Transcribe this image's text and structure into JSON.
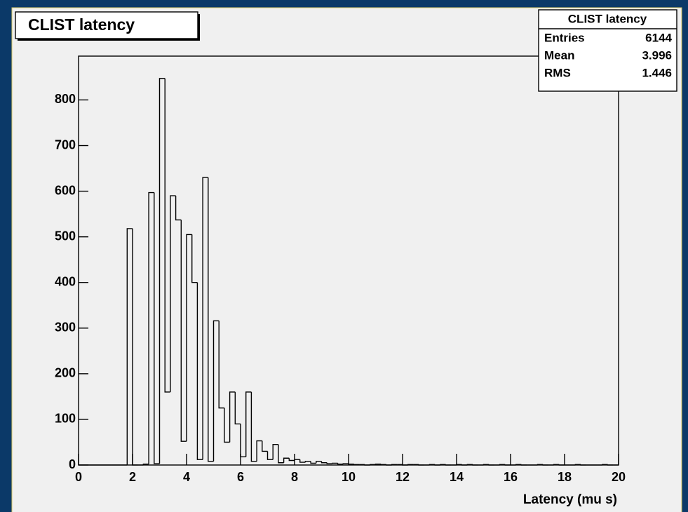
{
  "chart_data": {
    "type": "histogram",
    "title": "CLIST latency",
    "xlabel": "Latency (mu s)",
    "bins": [
      0,
      0.2,
      0.4,
      0.6,
      0.8,
      1,
      1.2,
      1.4,
      1.6,
      1.8,
      2,
      2.2,
      2.4,
      2.6,
      2.8,
      3,
      3.2,
      3.4,
      3.6,
      3.8,
      4,
      4.2,
      4.4,
      4.6,
      4.8,
      5,
      5.2,
      5.4,
      5.6,
      5.8,
      6,
      6.2,
      6.4,
      6.6,
      6.8,
      7,
      7.2,
      7.4,
      7.6,
      7.8,
      8,
      8.2,
      8.4,
      8.6,
      8.8,
      9,
      9.2,
      9.4,
      9.6,
      9.8,
      10,
      10.2,
      10.4,
      10.6,
      10.8,
      11,
      11.2,
      11.4,
      11.6,
      11.8,
      12,
      12.2,
      12.4,
      12.6,
      12.8,
      13,
      13.2,
      13.4,
      13.6,
      13.8,
      14,
      14.2,
      14.4,
      14.6,
      14.8,
      15,
      15.2,
      15.4,
      15.6,
      15.8,
      16,
      16.2,
      16.4,
      16.6,
      16.8,
      17,
      17.2,
      17.4,
      17.6,
      17.8,
      18,
      18.2,
      18.4,
      18.6,
      18.8,
      19,
      19.2,
      19.4,
      19.6,
      19.8,
      20
    ],
    "values": [
      0,
      0,
      0,
      0,
      0,
      0,
      0,
      0,
      0,
      518,
      0,
      0,
      2,
      597,
      3,
      847,
      160,
      590,
      537,
      52,
      505,
      400,
      12,
      630,
      8,
      316,
      125,
      50,
      160,
      90,
      18,
      160,
      8,
      53,
      30,
      12,
      45,
      5,
      15,
      10,
      12,
      6,
      8,
      4,
      8,
      5,
      3,
      4,
      2,
      3,
      2,
      1,
      1,
      0,
      1,
      2,
      1,
      0,
      1,
      1,
      0,
      1,
      1,
      0,
      0,
      1,
      0,
      1,
      0,
      0,
      1,
      0,
      1,
      0,
      0,
      1,
      0,
      0,
      1,
      0,
      0,
      1,
      0,
      0,
      0,
      1,
      0,
      0,
      1,
      0,
      0,
      0,
      1,
      0,
      0,
      0,
      0,
      1,
      0,
      0
    ],
    "color": "#000000",
    "xlim": [
      0,
      20
    ],
    "xticks": [
      0,
      2,
      4,
      6,
      8,
      10,
      12,
      14,
      16,
      18,
      20
    ],
    "ylim": [
      0,
      896
    ],
    "yticks": [
      0,
      100,
      200,
      300,
      400,
      500,
      600,
      700,
      800
    ],
    "stats": {
      "title": "CLIST latency",
      "rows": [
        [
          "Entries",
          6144
        ],
        [
          "Mean",
          3.996
        ],
        [
          "RMS",
          1.446
        ]
      ]
    }
  }
}
